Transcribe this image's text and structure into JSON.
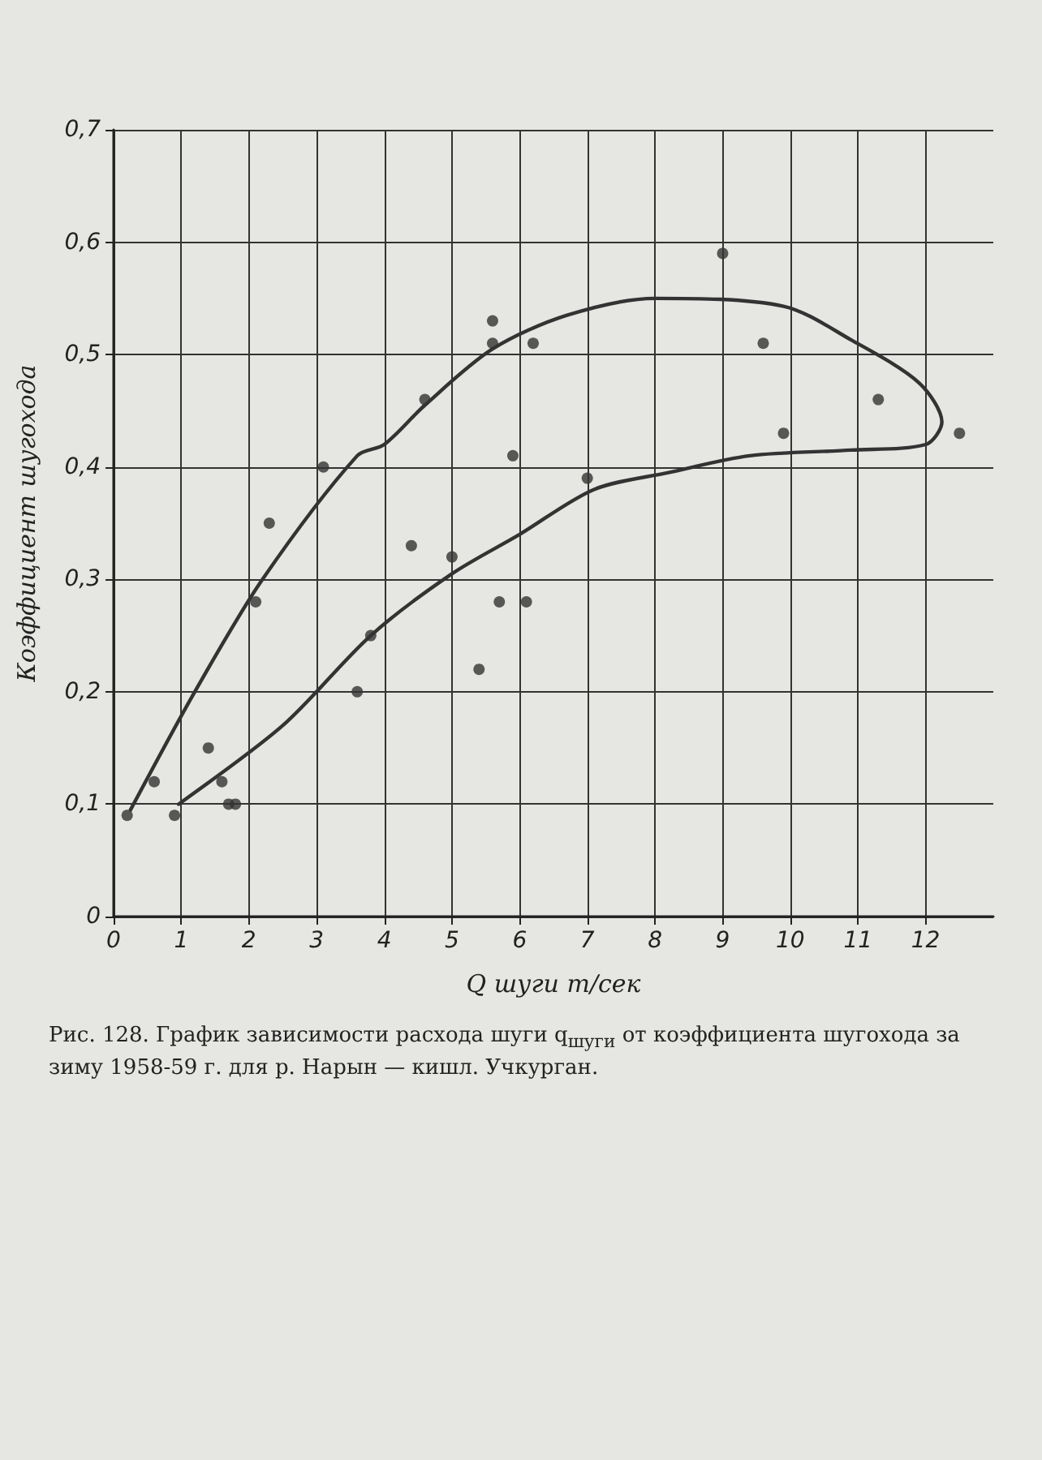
{
  "chart_data": {
    "type": "scatter",
    "xlabel": "Q шуги т/сек",
    "ylabel": "Коэффициент шугохода",
    "annotations": [
      "Рис. 128. График зависимости расхода шуги q$_{шуги}$ от коэффициента шугохода за зиму 1958-59 г. для р. Нарын — кишл. Учкурган."
    ],
    "xlim": [
      0,
      13
    ],
    "xticks": [
      0,
      1,
      2,
      3,
      4,
      5,
      6,
      7,
      8,
      9,
      10,
      11,
      12
    ],
    "ylim": [
      0,
      0.7
    ],
    "yticks": [
      {
        "value": 0,
        "label": "0"
      },
      {
        "value": 0.1,
        "label": "0,1"
      },
      {
        "value": 0.2,
        "label": "0,2"
      },
      {
        "value": 0.3,
        "label": "0,3"
      },
      {
        "value": 0.4,
        "label": "0,4"
      },
      {
        "value": 0.5,
        "label": "0,5"
      },
      {
        "value": 0.6,
        "label": "0,6"
      },
      {
        "value": 0.7,
        "label": "0,7"
      }
    ],
    "grid": true,
    "series": [
      {
        "marker": "circle",
        "color": "#333333",
        "x": [
          3.1,
          2.3,
          2.1,
          3.8,
          3.6,
          1.8,
          1.7,
          1.6,
          1.4,
          0.9,
          0.6,
          0.2,
          7.0,
          6.2,
          6.1,
          5.6,
          5.6,
          5.9,
          5.7,
          5.4,
          5.0,
          4.6,
          4.4,
          12.5,
          11.3,
          9.9,
          9.6,
          9.0
        ],
        "values": [
          0.4,
          0.35,
          0.28,
          0.25,
          0.2,
          0.1,
          0.1,
          0.12,
          0.15,
          0.09,
          0.12,
          0.09,
          0.39,
          0.51,
          0.28,
          0.53,
          0.51,
          0.41,
          0.28,
          0.22,
          0.32,
          0.46,
          0.33,
          0.43,
          0.46,
          0.43,
          0.51,
          0.59
        ]
      },
      {
        "type": "line",
        "marker": "none",
        "color": "#333333",
        "x": [
          0.25,
          1.2,
          2.2,
          3.6,
          4.0,
          4.6,
          5.6,
          6.7,
          8.0,
          9.9,
          10.9,
          11.9,
          12.24,
          12.0,
          10.9,
          9.4,
          8.2,
          7.1,
          6.0,
          5.0,
          3.8,
          2.5,
          0.96
        ],
        "values": [
          0.095,
          0.2,
          0.3,
          0.41,
          0.42,
          0.455,
          0.505,
          0.535,
          0.55,
          0.543,
          0.513,
          0.475,
          0.44,
          0.42,
          0.415,
          0.41,
          0.395,
          0.38,
          0.34,
          0.305,
          0.25,
          0.17,
          0.1
        ]
      }
    ]
  }
}
